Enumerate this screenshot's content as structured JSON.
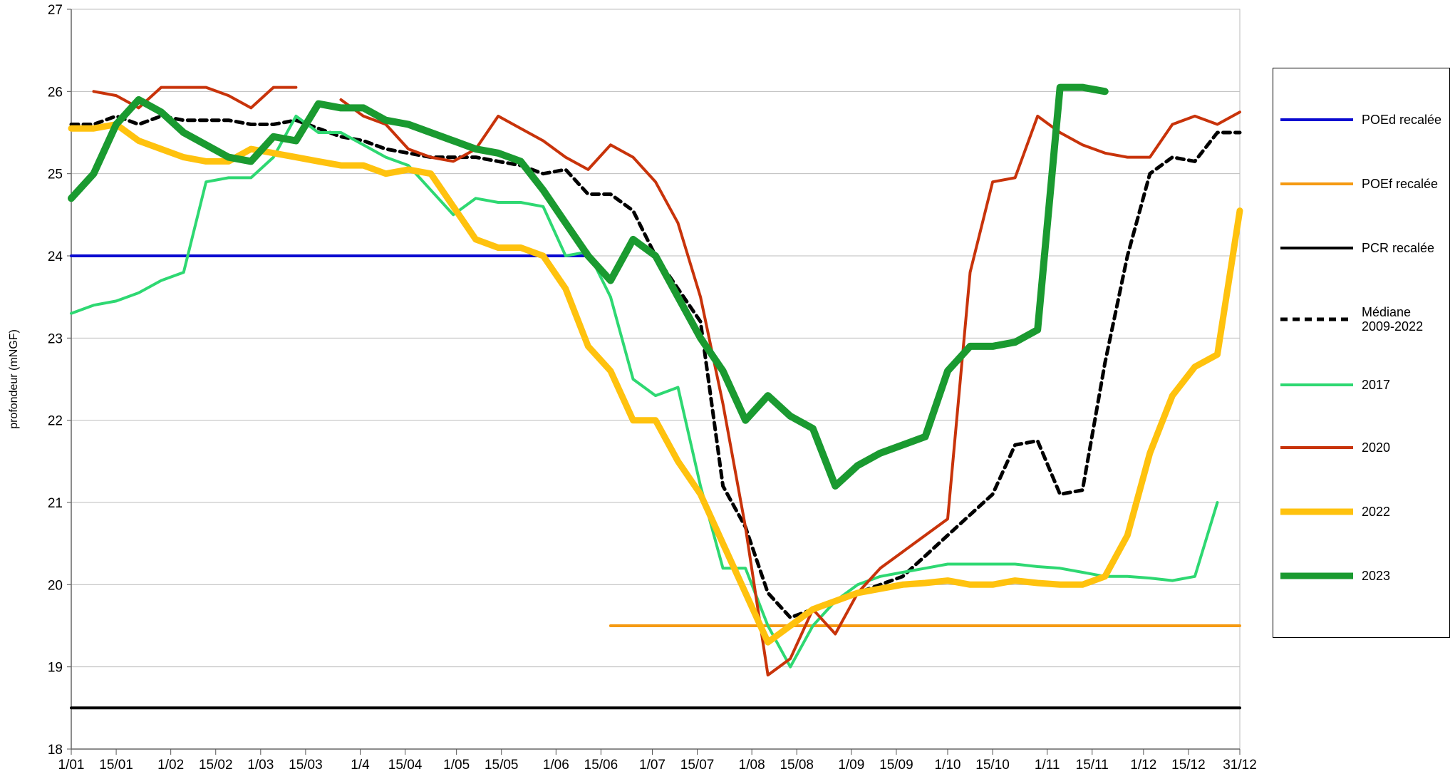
{
  "chart_data": {
    "type": "line",
    "y_label": "profondeur (mNGF)",
    "x": [
      0,
      7,
      14,
      21,
      28,
      35,
      42,
      49,
      56,
      63,
      70,
      77,
      84,
      91,
      98,
      105,
      112,
      119,
      126,
      133,
      140,
      147,
      154,
      161,
      168,
      175,
      182,
      189,
      196,
      203,
      210,
      217,
      224,
      231,
      238,
      245,
      252,
      259,
      266,
      273,
      280,
      287,
      294,
      301,
      308,
      315,
      322,
      329,
      336,
      343,
      350,
      357,
      364
    ],
    "xlim": [
      0,
      364
    ],
    "xticks": [
      {
        "value": 0,
        "label": "1/01"
      },
      {
        "value": 14,
        "label": "15/01"
      },
      {
        "value": 31,
        "label": "1/02"
      },
      {
        "value": 45,
        "label": "15/02"
      },
      {
        "value": 59,
        "label": "1/03"
      },
      {
        "value": 73,
        "label": "15/03"
      },
      {
        "value": 90,
        "label": "1/4"
      },
      {
        "value": 104,
        "label": "15/04"
      },
      {
        "value": 120,
        "label": "1/05"
      },
      {
        "value": 134,
        "label": "15/05"
      },
      {
        "value": 151,
        "label": "1/06"
      },
      {
        "value": 165,
        "label": "15/06"
      },
      {
        "value": 181,
        "label": "1/07"
      },
      {
        "value": 195,
        "label": "15/07"
      },
      {
        "value": 212,
        "label": "1/08"
      },
      {
        "value": 226,
        "label": "15/08"
      },
      {
        "value": 243,
        "label": "1/09"
      },
      {
        "value": 257,
        "label": "15/09"
      },
      {
        "value": 273,
        "label": "1/10"
      },
      {
        "value": 287,
        "label": "15/10"
      },
      {
        "value": 304,
        "label": "1/11"
      },
      {
        "value": 318,
        "label": "15/11"
      },
      {
        "value": 334,
        "label": "1/12"
      },
      {
        "value": 348,
        "label": "15/12"
      },
      {
        "value": 364,
        "label": "31/12"
      }
    ],
    "ylim": [
      18,
      27
    ],
    "yticks": [
      18,
      19,
      20,
      21,
      22,
      23,
      24,
      25,
      26,
      27
    ],
    "grid": true,
    "legend": "right",
    "series": [
      {
        "name": "POEd recalée",
        "color": "#0a0ad0",
        "values": [
          24,
          24,
          24,
          24,
          24,
          24,
          24,
          24,
          24,
          24,
          24,
          24,
          24,
          24,
          24,
          24,
          24,
          24,
          24,
          24,
          24,
          24,
          24,
          24,
          null,
          null,
          null,
          null,
          null,
          null,
          null,
          null,
          null,
          null,
          null,
          null,
          null,
          null,
          null,
          null,
          null,
          null,
          null,
          null,
          null,
          null,
          null,
          null,
          null,
          null,
          null,
          null,
          null
        ]
      },
      {
        "name": "POEf recalée",
        "color": "#f59a12",
        "values": [
          null,
          null,
          null,
          null,
          null,
          null,
          null,
          null,
          null,
          null,
          null,
          null,
          null,
          null,
          null,
          null,
          null,
          null,
          null,
          null,
          null,
          null,
          null,
          null,
          19.5,
          19.5,
          19.5,
          19.5,
          19.5,
          19.5,
          19.5,
          19.5,
          19.5,
          19.5,
          19.5,
          19.5,
          19.5,
          19.5,
          19.5,
          19.5,
          19.5,
          19.5,
          19.5,
          19.5,
          19.5,
          19.5,
          19.5,
          19.5,
          19.5,
          19.5,
          19.5,
          19.5,
          19.5
        ]
      },
      {
        "name": "PCR recalée",
        "color": "#000000",
        "values": [
          18.5,
          18.5,
          18.5,
          18.5,
          18.5,
          18.5,
          18.5,
          18.5,
          18.5,
          18.5,
          18.5,
          18.5,
          18.5,
          18.5,
          18.5,
          18.5,
          18.5,
          18.5,
          18.5,
          18.5,
          18.5,
          18.5,
          18.5,
          18.5,
          18.5,
          18.5,
          18.5,
          18.5,
          18.5,
          18.5,
          18.5,
          18.5,
          18.5,
          18.5,
          18.5,
          18.5,
          18.5,
          18.5,
          18.5,
          18.5,
          18.5,
          18.5,
          18.5,
          18.5,
          18.5,
          18.5,
          18.5,
          18.5,
          18.5,
          18.5,
          18.5,
          18.5,
          18.5
        ]
      },
      {
        "name": "Médiane 2009-2022",
        "color": "#000000",
        "dashed": true,
        "values": [
          25.6,
          25.6,
          25.7,
          25.6,
          25.7,
          25.65,
          25.65,
          25.65,
          25.6,
          25.6,
          25.65,
          25.55,
          25.45,
          25.4,
          25.3,
          25.25,
          25.2,
          25.2,
          25.2,
          25.15,
          25.1,
          25.0,
          25.05,
          24.75,
          24.75,
          24.55,
          24.0,
          23.6,
          23.2,
          21.2,
          20.7,
          19.9,
          19.6,
          19.7,
          19.8,
          19.9,
          20.0,
          20.1,
          20.35,
          20.6,
          20.85,
          21.1,
          21.7,
          21.75,
          21.1,
          21.15,
          22.7,
          24.0,
          25.0,
          25.2,
          25.15,
          25.5,
          25.5
        ]
      },
      {
        "name": "2017",
        "color": "#2ed872",
        "values": [
          23.3,
          23.4,
          23.45,
          23.55,
          23.7,
          23.8,
          24.9,
          24.95,
          24.95,
          25.2,
          25.7,
          25.5,
          25.5,
          25.35,
          25.2,
          25.1,
          24.8,
          24.5,
          24.7,
          24.65,
          24.65,
          24.6,
          24.0,
          24.05,
          23.5,
          22.5,
          22.3,
          22.4,
          21.2,
          20.2,
          20.2,
          19.5,
          19.0,
          19.5,
          19.8,
          20.0,
          20.1,
          20.15,
          20.2,
          20.25,
          20.25,
          20.25,
          20.25,
          20.22,
          20.2,
          20.15,
          20.1,
          20.1,
          20.08,
          20.05,
          20.1,
          21.0,
          null
        ]
      },
      {
        "name": "2020",
        "color": "#c8330a",
        "values": [
          null,
          26.0,
          25.95,
          25.8,
          26.05,
          26.05,
          26.05,
          25.95,
          25.8,
          26.05,
          26.05,
          null,
          25.9,
          25.7,
          25.6,
          25.3,
          25.2,
          25.15,
          25.3,
          25.7,
          25.55,
          25.4,
          25.2,
          25.05,
          25.35,
          25.2,
          24.9,
          24.4,
          23.5,
          22.2,
          20.7,
          18.9,
          19.1,
          19.7,
          19.4,
          19.9,
          20.2,
          20.4,
          20.6,
          20.8,
          23.8,
          24.9,
          24.95,
          25.7,
          25.5,
          25.35,
          25.25,
          25.2,
          25.2,
          25.6,
          25.7,
          25.6,
          25.75
        ]
      },
      {
        "name": "2022",
        "color": "#ffc20e",
        "values": [
          25.55,
          25.55,
          25.6,
          25.4,
          25.3,
          25.2,
          25.15,
          25.15,
          25.3,
          25.25,
          25.2,
          25.15,
          25.1,
          25.1,
          25.0,
          25.05,
          25.0,
          24.6,
          24.2,
          24.1,
          24.1,
          24.0,
          23.6,
          22.9,
          22.6,
          22.0,
          22.0,
          21.5,
          21.1,
          20.5,
          19.9,
          19.3,
          19.5,
          19.7,
          19.8,
          19.9,
          19.95,
          20.0,
          20.02,
          20.05,
          20.0,
          20.0,
          20.05,
          20.02,
          20.0,
          20.0,
          20.1,
          20.6,
          21.6,
          22.3,
          22.65,
          22.8,
          24.55
        ]
      },
      {
        "name": "2023",
        "color": "#1a9a30",
        "values": [
          24.7,
          25.0,
          25.6,
          25.9,
          25.75,
          25.5,
          25.35,
          25.2,
          25.15,
          25.45,
          25.4,
          25.85,
          25.8,
          25.8,
          25.65,
          25.6,
          25.5,
          25.4,
          25.3,
          25.25,
          25.15,
          24.8,
          24.4,
          24.0,
          23.7,
          24.2,
          24.0,
          23.5,
          23.0,
          22.6,
          22.0,
          22.3,
          22.05,
          21.9,
          21.2,
          21.45,
          21.6,
          21.7,
          21.8,
          22.6,
          22.9,
          22.9,
          22.95,
          23.1,
          26.05,
          26.05,
          26.0,
          null,
          null,
          null,
          null,
          null,
          null
        ]
      }
    ]
  }
}
